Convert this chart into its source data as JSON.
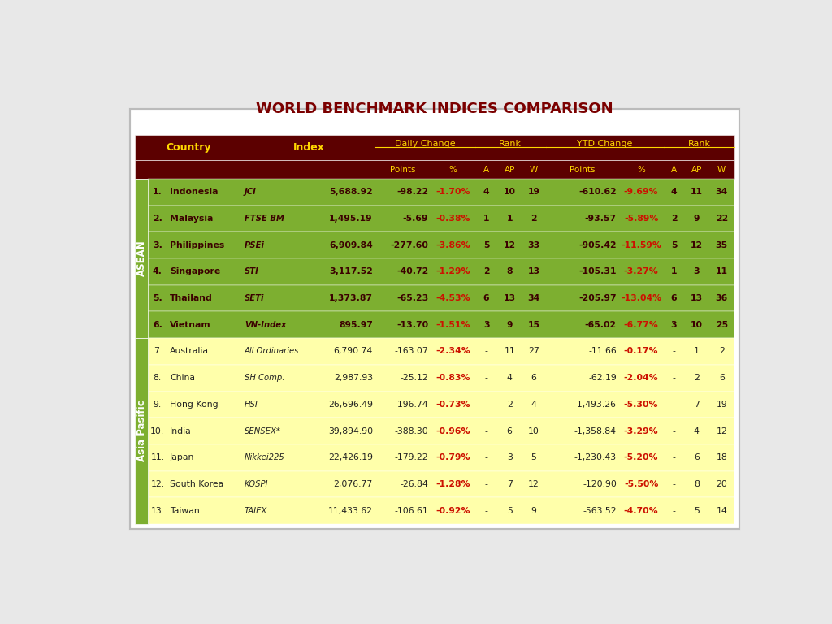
{
  "title": "WORLD BENCHMARK INDICES COMPARISON",
  "title_color": "#7B0000",
  "gold": "#FFD700",
  "header_dark": "#5C0000",
  "asean_row_bg": "#7DAF30",
  "apac_row_bg": "#FFFFAA",
  "asean_grp_bg": "#7DAF30",
  "apac_grp_bg": "#7DAF30",
  "red_text": "#CC1100",
  "dark_asean": "#3B0000",
  "dark_apac": "#222222",
  "outer_bg": "#E8E8E8",
  "table_outer_bg": "#FFFFFF",
  "asean_label": "ASEAN",
  "apac_label": "Asia Pasific",
  "rows": [
    {
      "num": "1.",
      "country": "Indonesia",
      "index": "JCI",
      "idx_val": "5,688.92",
      "dc_pts": "-98.22",
      "dc_pct": "-1.70%",
      "rank_a": "4",
      "rank_ap": "10",
      "rank_w": "19",
      "ytd_pts": "-610.62",
      "ytd_pct": "-9.69%",
      "ytd_rank_a": "4",
      "ytd_rank_ap": "11",
      "ytd_rank_w": "34",
      "group": "asean"
    },
    {
      "num": "2.",
      "country": "Malaysia",
      "index": "FTSE BM",
      "idx_val": "1,495.19",
      "dc_pts": "-5.69",
      "dc_pct": "-0.38%",
      "rank_a": "1",
      "rank_ap": "1",
      "rank_w": "2",
      "ytd_pts": "-93.57",
      "ytd_pct": "-5.89%",
      "ytd_rank_a": "2",
      "ytd_rank_ap": "9",
      "ytd_rank_w": "22",
      "group": "asean"
    },
    {
      "num": "3.",
      "country": "Philippines",
      "index": "PSEi",
      "idx_val": "6,909.84",
      "dc_pts": "-277.60",
      "dc_pct": "-3.86%",
      "rank_a": "5",
      "rank_ap": "12",
      "rank_w": "33",
      "ytd_pts": "-905.42",
      "ytd_pct": "-11.59%",
      "ytd_rank_a": "5",
      "ytd_rank_ap": "12",
      "ytd_rank_w": "35",
      "group": "asean"
    },
    {
      "num": "4.",
      "country": "Singapore",
      "index": "STI",
      "idx_val": "3,117.52",
      "dc_pts": "-40.72",
      "dc_pct": "-1.29%",
      "rank_a": "2",
      "rank_ap": "8",
      "rank_w": "13",
      "ytd_pts": "-105.31",
      "ytd_pct": "-3.27%",
      "ytd_rank_a": "1",
      "ytd_rank_ap": "3",
      "ytd_rank_w": "11",
      "group": "asean"
    },
    {
      "num": "5.",
      "country": "Thailand",
      "index": "SETi",
      "idx_val": "1,373.87",
      "dc_pts": "-65.23",
      "dc_pct": "-4.53%",
      "rank_a": "6",
      "rank_ap": "13",
      "rank_w": "34",
      "ytd_pts": "-205.97",
      "ytd_pct": "-13.04%",
      "ytd_rank_a": "6",
      "ytd_rank_ap": "13",
      "ytd_rank_w": "36",
      "group": "asean"
    },
    {
      "num": "6.",
      "country": "Vietnam",
      "index": "VN-Index",
      "idx_val": "895.97",
      "dc_pts": "-13.70",
      "dc_pct": "-1.51%",
      "rank_a": "3",
      "rank_ap": "9",
      "rank_w": "15",
      "ytd_pts": "-65.02",
      "ytd_pct": "-6.77%",
      "ytd_rank_a": "3",
      "ytd_rank_ap": "10",
      "ytd_rank_w": "25",
      "group": "asean"
    },
    {
      "num": "7.",
      "country": "Australia",
      "index": "All Ordinaries",
      "idx_val": "6,790.74",
      "dc_pts": "-163.07",
      "dc_pct": "-2.34%",
      "rank_a": "-",
      "rank_ap": "11",
      "rank_w": "27",
      "ytd_pts": "-11.66",
      "ytd_pct": "-0.17%",
      "ytd_rank_a": "-",
      "ytd_rank_ap": "1",
      "ytd_rank_w": "2",
      "group": "apac"
    },
    {
      "num": "8.",
      "country": "China",
      "index": "SH Comp.",
      "idx_val": "2,987.93",
      "dc_pts": "-25.12",
      "dc_pct": "-0.83%",
      "rank_a": "-",
      "rank_ap": "4",
      "rank_w": "6",
      "ytd_pts": "-62.19",
      "ytd_pct": "-2.04%",
      "ytd_rank_a": "-",
      "ytd_rank_ap": "2",
      "ytd_rank_w": "6",
      "group": "apac"
    },
    {
      "num": "9.",
      "country": "Hong Kong",
      "index": "HSI",
      "idx_val": "26,696.49",
      "dc_pts": "-196.74",
      "dc_pct": "-0.73%",
      "rank_a": "-",
      "rank_ap": "2",
      "rank_w": "4",
      "ytd_pts": "-1,493.26",
      "ytd_pct": "-5.30%",
      "ytd_rank_a": "-",
      "ytd_rank_ap": "7",
      "ytd_rank_w": "19",
      "group": "apac"
    },
    {
      "num": "10.",
      "country": "India",
      "index": "SENSEX*",
      "idx_val": "39,894.90",
      "dc_pts": "-388.30",
      "dc_pct": "-0.96%",
      "rank_a": "-",
      "rank_ap": "6",
      "rank_w": "10",
      "ytd_pts": "-1,358.84",
      "ytd_pct": "-3.29%",
      "ytd_rank_a": "-",
      "ytd_rank_ap": "4",
      "ytd_rank_w": "12",
      "group": "apac"
    },
    {
      "num": "11.",
      "country": "Japan",
      "index": "Nikkei225",
      "idx_val": "22,426.19",
      "dc_pts": "-179.22",
      "dc_pct": "-0.79%",
      "rank_a": "-",
      "rank_ap": "3",
      "rank_w": "5",
      "ytd_pts": "-1,230.43",
      "ytd_pct": "-5.20%",
      "ytd_rank_a": "-",
      "ytd_rank_ap": "6",
      "ytd_rank_w": "18",
      "group": "apac"
    },
    {
      "num": "12.",
      "country": "South Korea",
      "index": "KOSPI",
      "idx_val": "2,076.77",
      "dc_pts": "-26.84",
      "dc_pct": "-1.28%",
      "rank_a": "-",
      "rank_ap": "7",
      "rank_w": "12",
      "ytd_pts": "-120.90",
      "ytd_pct": "-5.50%",
      "ytd_rank_a": "-",
      "ytd_rank_ap": "8",
      "ytd_rank_w": "20",
      "group": "apac"
    },
    {
      "num": "13.",
      "country": "Taiwan",
      "index": "TAIEX",
      "idx_val": "11,433.62",
      "dc_pts": "-106.61",
      "dc_pct": "-0.92%",
      "rank_a": "-",
      "rank_ap": "5",
      "rank_w": "9",
      "ytd_pts": "-563.52",
      "ytd_pct": "-4.70%",
      "ytd_rank_a": "-",
      "ytd_rank_ap": "5",
      "ytd_rank_w": "14",
      "group": "apac"
    }
  ]
}
